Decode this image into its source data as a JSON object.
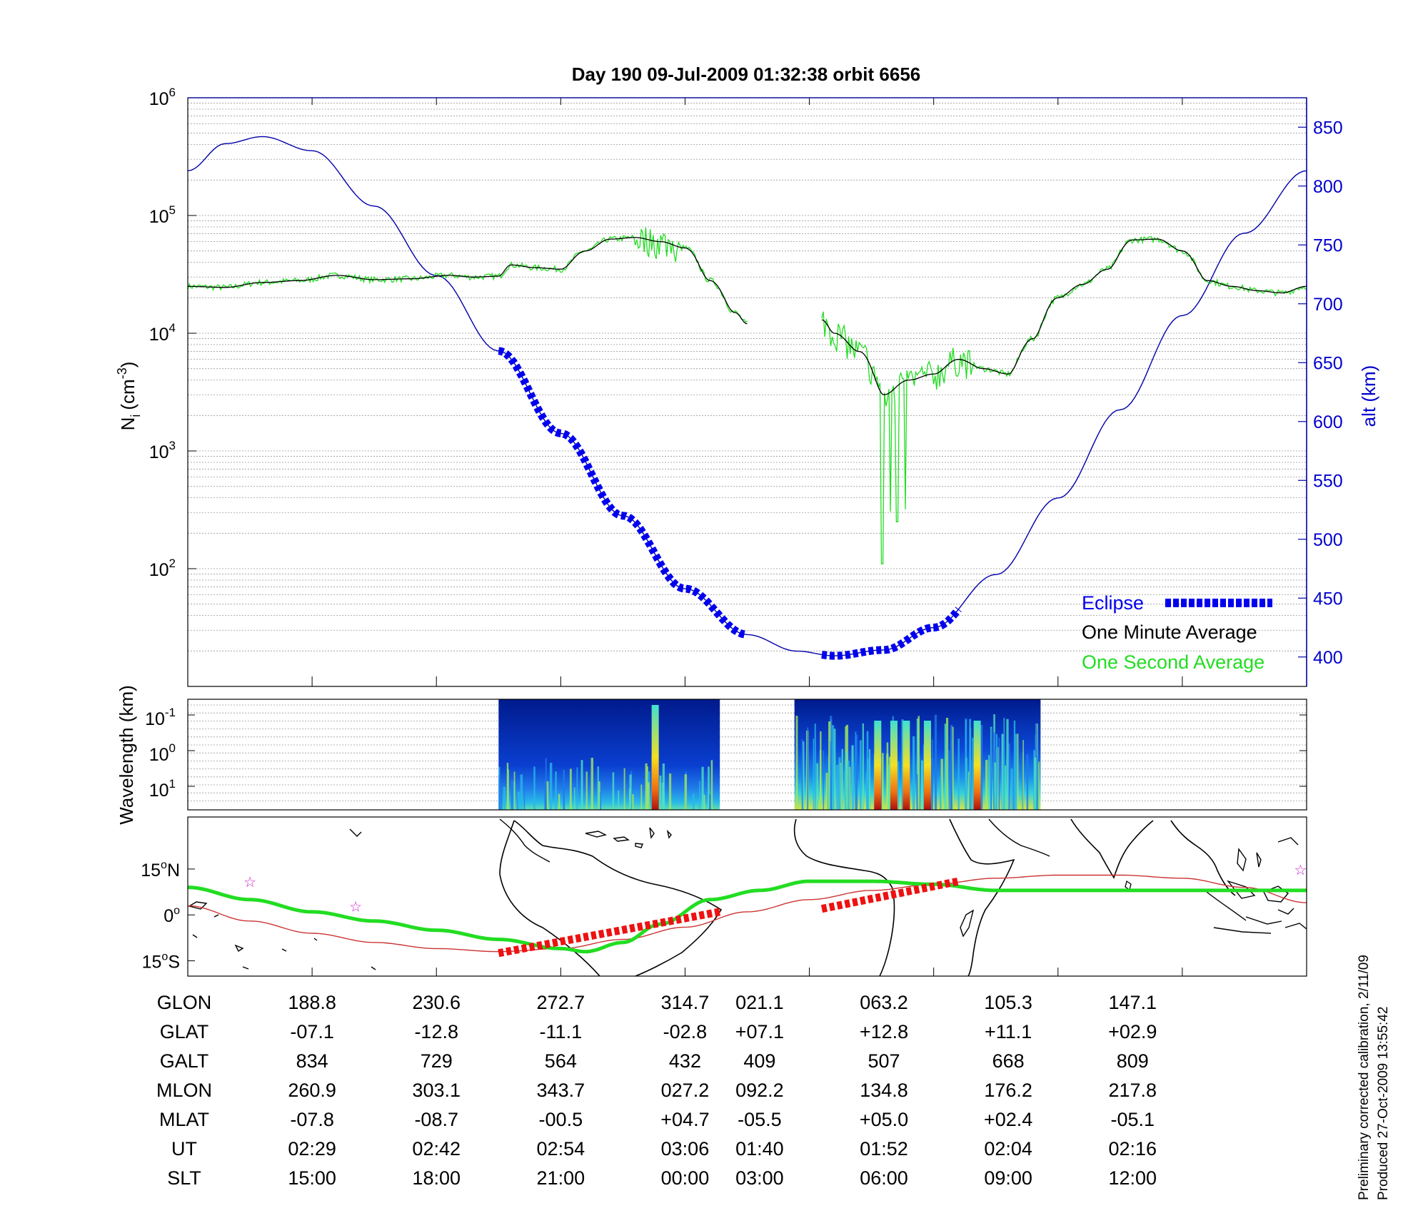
{
  "chart_data": [
    {
      "type": "line",
      "panel": "density",
      "title": "Day 190  09-Jul-2009 01:32:38    orbit 6656",
      "ylabel_left_base": "N",
      "ylabel_left_sub": "i",
      "ylabel_left_unit": "(cm",
      "ylabel_left_sup": "-3",
      "ylabel_left_close": ")",
      "ylabel_right": "alt (km)",
      "yscale_left": "log",
      "ylim_left": [
        10,
        1000000
      ],
      "left_ticks": [
        {
          "base": "10",
          "exp": "6",
          "value": 1000000
        },
        {
          "base": "10",
          "exp": "5",
          "value": 100000
        },
        {
          "base": "10",
          "exp": "4",
          "value": 10000
        },
        {
          "base": "10",
          "exp": "3",
          "value": 1000
        },
        {
          "base": "10",
          "exp": "2",
          "value": 100
        }
      ],
      "ylim_right": [
        375,
        875
      ],
      "right_ticks": [
        "850",
        "800",
        "750",
        "700",
        "650",
        "600",
        "550",
        "500",
        "450",
        "400"
      ],
      "grid": "horizontal minor log grid",
      "legend_position": "bottom-right",
      "legend": [
        {
          "label": "Eclipse",
          "color": "#0000ee"
        },
        {
          "label": "One Minute Average",
          "color": "#000000"
        },
        {
          "label": "One Second Average",
          "color": "#22dd22"
        }
      ],
      "x_ticks_index": [
        0,
        1,
        2,
        3,
        4,
        5,
        6,
        7,
        8
      ],
      "series": [
        {
          "name": "alt (km)",
          "axis": "right",
          "color": "#0000aa",
          "x": [
            0,
            0.3,
            0.6,
            1,
            1.5,
            2,
            2.5,
            3,
            3.5,
            4,
            4.5,
            4.9,
            5.2,
            5.6,
            6,
            6.5,
            7,
            7.5,
            8,
            8.5,
            9
          ],
          "y": [
            813,
            836,
            842,
            830,
            783,
            724,
            660,
            590,
            520,
            458,
            419,
            405,
            401,
            406,
            425,
            470,
            535,
            610,
            690,
            760,
            813
          ]
        },
        {
          "name": "One Minute Average",
          "axis": "left",
          "color": "#000000",
          "segments": [
            {
              "x": [
                0,
                0.3,
                0.6,
                0.9,
                1.2,
                1.5,
                1.8,
                2.1,
                2.3,
                2.5,
                2.6,
                2.8,
                3.0,
                3.2,
                3.4,
                3.6,
                3.8,
                4.0,
                4.2,
                4.4,
                4.5
              ],
              "y": [
                25000,
                24500,
                27000,
                28000,
                31000,
                28500,
                29000,
                31000,
                30000,
                30500,
                38000,
                36000,
                35000,
                50000,
                63000,
                65000,
                60000,
                53000,
                28000,
                15000,
                12000
              ]
            },
            {
              "x": [
                5.1,
                5.2,
                5.4,
                5.6,
                5.8,
                6.0,
                6.2,
                6.4,
                6.6,
                6.8,
                7.0,
                7.2,
                7.4,
                7.6,
                7.8,
                8.0,
                8.2,
                8.4,
                8.6,
                8.8,
                9.0
              ],
              "y": [
                13000,
                10000,
                7000,
                3000,
                4000,
                4500,
                6000,
                5000,
                4500,
                9000,
                20000,
                26000,
                35000,
                62000,
                63000,
                50000,
                28000,
                25000,
                23000,
                22000,
                25000
              ]
            }
          ]
        },
        {
          "name": "One Second Average",
          "axis": "left",
          "color": "#22dd22",
          "note": "noisy variant of one minute average with deep dips to ~100 near x=5.6"
        }
      ],
      "eclipse_segments": [
        {
          "x_start": 2.5,
          "x_end": 4.5,
          "alt_start": 650,
          "alt_end": 413
        },
        {
          "x_start": 5.1,
          "x_end": 6.2,
          "alt_start": 408,
          "alt_end": 432
        }
      ]
    },
    {
      "type": "heatmap",
      "panel": "spectrogram",
      "ylabel": "Wavelength (km)",
      "y_ticks": [
        {
          "base": "10",
          "exp": "-1"
        },
        {
          "base": "10",
          "exp": "0"
        },
        {
          "base": "10",
          "exp": "1"
        }
      ],
      "data_windows": [
        {
          "x_start": 2.5,
          "x_end": 4.28
        },
        {
          "x_start": 4.88,
          "x_end": 6.86
        }
      ],
      "colormap": "jet"
    },
    {
      "type": "line",
      "panel": "map",
      "y_ticks": [
        {
          "deg": "15",
          "hemi": "N"
        },
        {
          "deg": "0",
          "hemi": ""
        },
        {
          "deg": "15",
          "hemi": "S"
        }
      ],
      "ylim": [
        -20,
        32
      ],
      "series": [
        {
          "name": "orbit track",
          "color": "#22dd22",
          "x": [
            0,
            0.5,
            1,
            1.5,
            2,
            2.5,
            3,
            3.2,
            3.5,
            3.8,
            4.2,
            4.6,
            5.0,
            5.5,
            6.0,
            6.5,
            7,
            7.5,
            8,
            8.5,
            9
          ],
          "y": [
            9,
            5,
            1,
            -2,
            -5,
            -8,
            -11,
            -12,
            -9,
            -3,
            5,
            8,
            11,
            11,
            10,
            8,
            8,
            8,
            8,
            8,
            8
          ]
        },
        {
          "name": "magnetic equator",
          "color": "#cc3333",
          "x": [
            0,
            0.5,
            1,
            1.5,
            2,
            2.5,
            3,
            3.5,
            4,
            4.5,
            5,
            5.5,
            6,
            6.5,
            7,
            7.5,
            8,
            8.5,
            9
          ],
          "y": [
            3,
            -2,
            -6,
            -9,
            -11,
            -12,
            -11,
            -8,
            -4,
            1,
            5,
            8,
            10,
            12,
            13,
            13,
            12,
            9,
            4
          ]
        }
      ],
      "eclipse_segments": [
        {
          "x_start": 2.5,
          "x_end": 4.28,
          "y_start": -12.5,
          "y_end": 1
        },
        {
          "x_start": 5.1,
          "x_end": 6.2,
          "y_start": 2,
          "y_end": 11
        }
      ],
      "stars": [
        {
          "x": 0.5,
          "y": 11
        },
        {
          "x": 1.35,
          "y": 3
        },
        {
          "x": 8.95,
          "y": 15
        }
      ]
    }
  ],
  "table": {
    "rows": [
      {
        "label": "GLON",
        "values": [
          "188.8",
          "230.6",
          "272.7",
          "314.7",
          "021.1",
          "063.2",
          "105.3",
          "147.1"
        ]
      },
      {
        "label": "GLAT",
        "values": [
          "-07.1",
          "-12.8",
          "-11.1",
          "-02.8",
          "+07.1",
          "+12.8",
          "+11.1",
          "+02.9"
        ]
      },
      {
        "label": "GALT",
        "values": [
          "834",
          "729",
          "564",
          "432",
          "409",
          "507",
          "668",
          "809"
        ]
      },
      {
        "label": "MLON",
        "values": [
          "260.9",
          "303.1",
          "343.7",
          "027.2",
          "092.2",
          "134.8",
          "176.2",
          "217.8"
        ]
      },
      {
        "label": "MLAT",
        "values": [
          "-07.8",
          "-08.7",
          "-00.5",
          "+04.7",
          "-05.5",
          "+05.0",
          "+02.4",
          "-05.1"
        ]
      },
      {
        "label": "UT",
        "values": [
          "02:29",
          "02:42",
          "02:54",
          "03:06",
          "01:40",
          "01:52",
          "02:04",
          "02:16"
        ]
      },
      {
        "label": "SLT",
        "values": [
          "15:00",
          "18:00",
          "21:00",
          "00:00",
          "03:00",
          "06:00",
          "09:00",
          "12:00"
        ]
      }
    ],
    "column_x_index": [
      1,
      2,
      3,
      4,
      5.6,
      6.6,
      7.6,
      8.6
    ]
  },
  "footnote": {
    "line1": "Preliminary corrected calibration, 2/11/09",
    "line2": "Produced 27-Oct-2009 13:55:42"
  }
}
